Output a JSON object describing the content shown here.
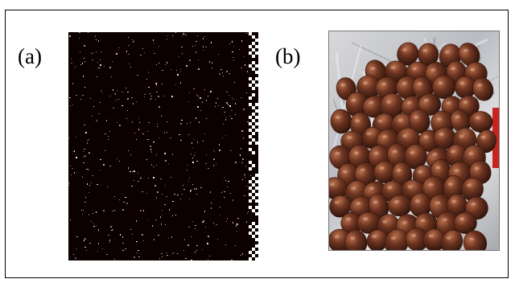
{
  "figure": {
    "panels": [
      {
        "label": "(a)",
        "content": "sparse-pixel-map-image"
      },
      {
        "label": "(b)",
        "content": "photo-of-hazelnuts-on-foil"
      }
    ]
  },
  "colors": {
    "panel_a_background": "#0d0000",
    "pixel_dot": "#e8d8c8",
    "nut_brown": "#6b3320",
    "foil_silver": "#c8cacd"
  }
}
